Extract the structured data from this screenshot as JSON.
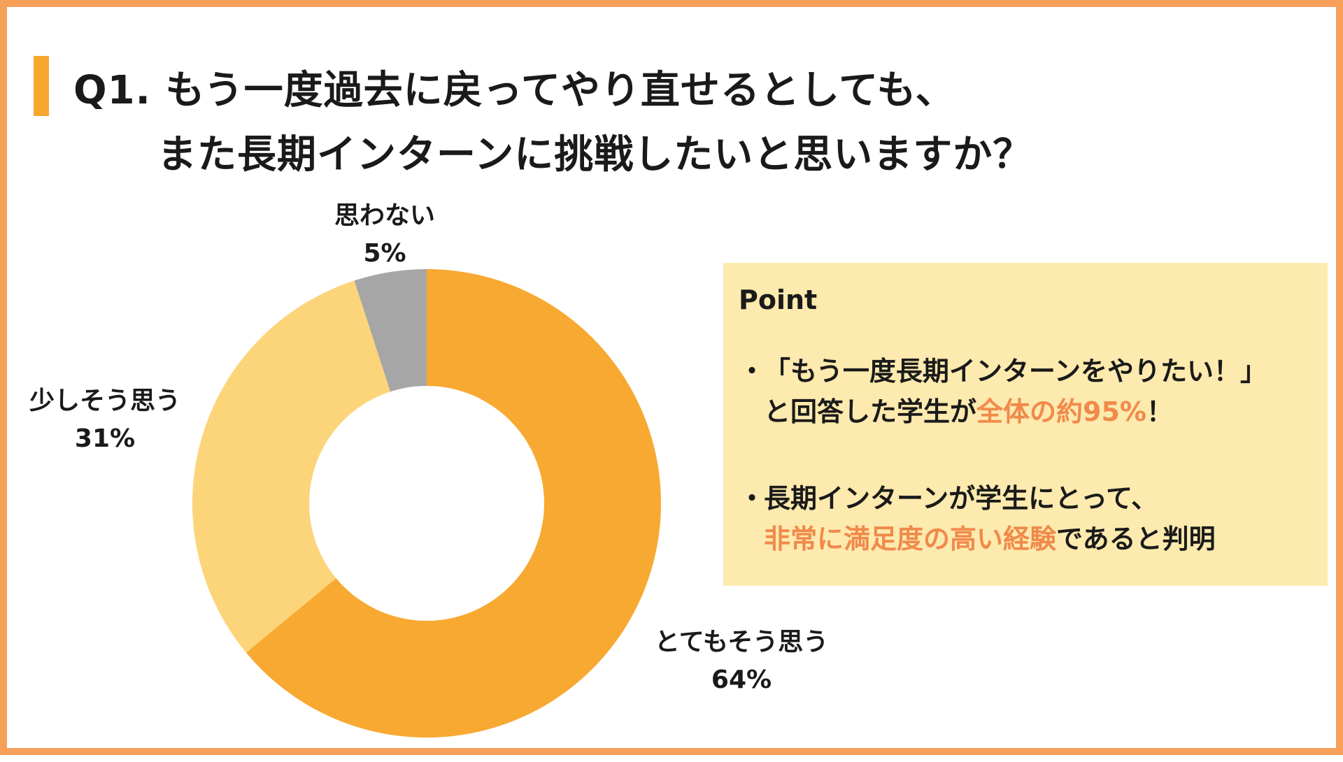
{
  "title": {
    "line1": "Q1. もう一度過去に戻ってやり直せるとしても、",
    "line2": "また長期インターンに挑戦したいと思いますか？"
  },
  "colors": {
    "frame": "#f7a05a",
    "title_bar": "#f6a82e",
    "box_bg": "#fdeaae",
    "accent_text": "#f08a4b"
  },
  "chart_data": {
    "type": "pie",
    "variant": "donut",
    "start_angle_deg": 0,
    "direction": "clockwise",
    "slices": [
      {
        "label": "とてもそう思う",
        "value": 64,
        "value_label": "64%",
        "color": "#f8a932"
      },
      {
        "label": "少しそう思う",
        "value": 31,
        "value_label": "31%",
        "color": "#fcd57a"
      },
      {
        "label": "思わない",
        "value": 5,
        "value_label": "5%",
        "color": "#a6a6a6"
      }
    ]
  },
  "point": {
    "heading": "Point",
    "bullet": "・",
    "item1": {
      "line1": "「もう一度長期インターンをやりたい！」",
      "line2_before": "と回答した学生が",
      "line2_accent": "全体の約95%",
      "line2_after": "！"
    },
    "item2": {
      "line1": "長期インターンが学生にとって、",
      "line2_accent": "非常に満足度の高い経験",
      "line2_after": "であると判明"
    }
  }
}
